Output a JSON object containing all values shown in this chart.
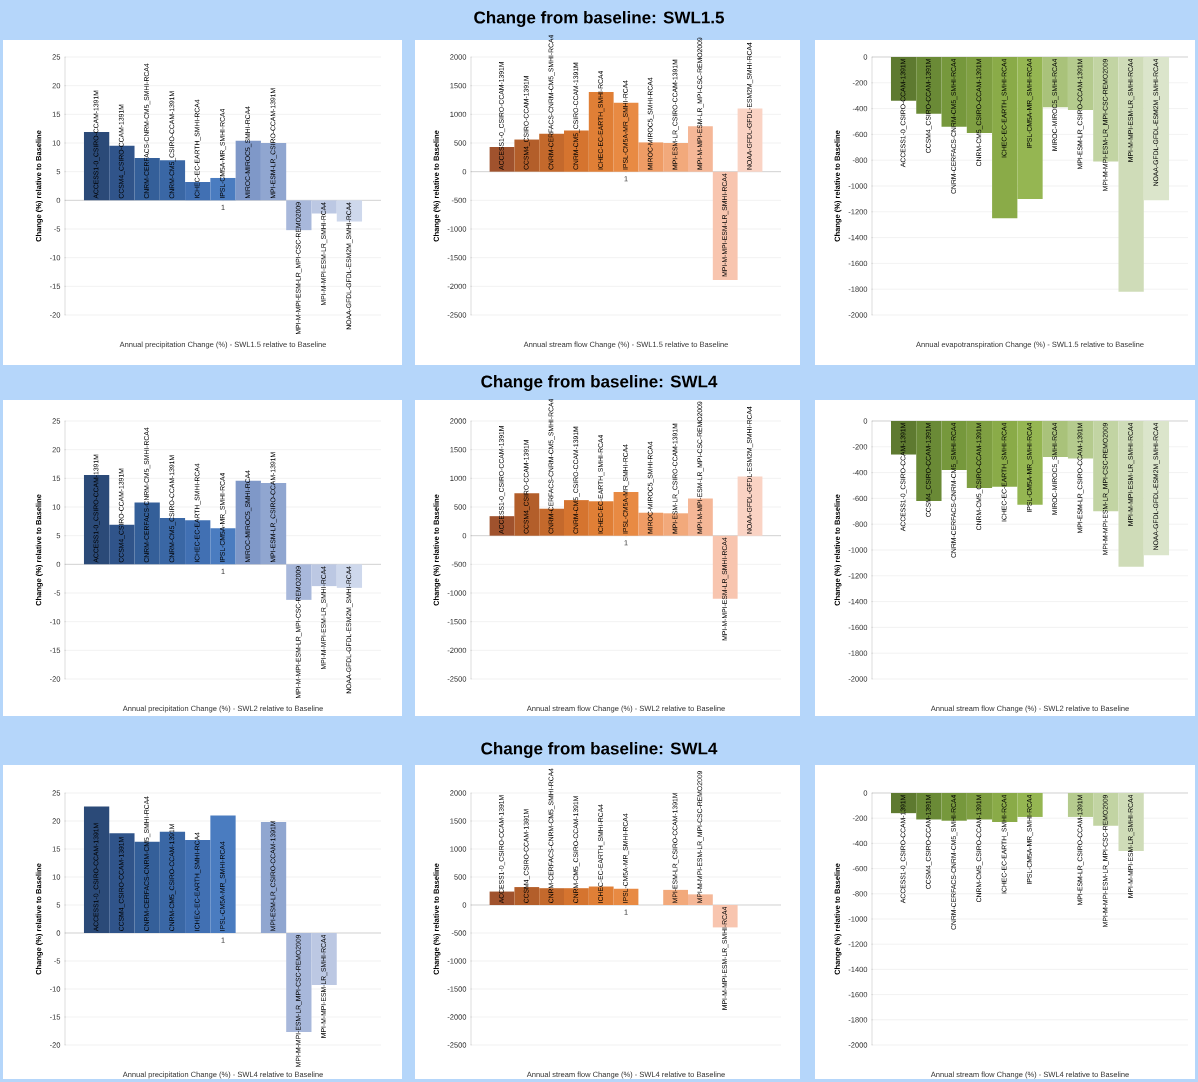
{
  "chart_data": [
    {
      "type": "bar",
      "xlabel": "Annual precipitation Change (%) - SWL1.5 relative to Baseline",
      "ylabel": "Change (%) relative to Baseline",
      "categories": [
        "1"
      ],
      "ylim": [
        -20,
        25
      ],
      "yticks": [
        -20,
        -15,
        -10,
        -5,
        0,
        5,
        10,
        15,
        20,
        25
      ],
      "grid": "y",
      "series": [
        {
          "name": "ACCESS1-0_CSIRO-CCAM-1391M",
          "color": "#2b4a78",
          "values": [
            11.9
          ]
        },
        {
          "name": "CCSM4_CSIRO-CCAM-1391M",
          "color": "#30548a",
          "values": [
            9.5
          ]
        },
        {
          "name": "CNRM-CERFACS-CNRM-CM5_SMHI-RCA4",
          "color": "#345f99",
          "values": [
            7.4
          ]
        },
        {
          "name": "CNRM-CM5_CSIRO-CCAM-1391M",
          "color": "#3a67a5",
          "values": [
            7.0
          ]
        },
        {
          "name": "ICHEC-EC-EARTH_SMHI-RCA4",
          "color": "#4170b3",
          "values": [
            3.2
          ]
        },
        {
          "name": "IPSL-CM5A-MR_SMHI-RCA4",
          "color": "#4a7cc0",
          "values": [
            3.9
          ]
        },
        {
          "name": "MIROC-MIROC5_SMHI-RCA4",
          "color": "#7f98c8",
          "values": [
            10.4
          ]
        },
        {
          "name": "MPI-ESM-LR_CSIRO-CCAM-1391M",
          "color": "#90a6d0",
          "values": [
            10.0
          ]
        },
        {
          "name": "MPI-M-MPI-ESM-LR_MPI-CSC-REMO2009",
          "color": "#a8b8db",
          "values": [
            -5.2
          ]
        },
        {
          "name": "MPI-M-MPI-ESM-LR_SMHI-RCA4",
          "color": "#bcc8e3",
          "values": [
            -2.3
          ]
        },
        {
          "name": "NOAA-GFDL-GFDL-ESM2M_SMHI-RCA4",
          "color": "#ced8ec",
          "values": [
            -3.7
          ]
        }
      ]
    },
    {
      "type": "bar",
      "title": "Change from baseline: SWL1.5",
      "xlabel": "Annual stream flow Change (%) - SWL1.5 relative to Baseline",
      "ylabel": "Change (%) relative to Baseline",
      "categories": [
        "1"
      ],
      "ylim": [
        -2500,
        2000
      ],
      "yticks": [
        -2500,
        -2000,
        -1500,
        -1000,
        -500,
        0,
        500,
        1000,
        1500,
        2000
      ],
      "grid": "y",
      "series": [
        {
          "name": "ACCESS1-0_CSIRO-CCAM-1391M",
          "color": "#a0522d",
          "values": [
            430
          ]
        },
        {
          "name": "CCSM4_CSIRO-CCAM-1391M",
          "color": "#b35e2a",
          "values": [
            560
          ]
        },
        {
          "name": "CNRM-CERFACS-CNRM-CM5_SMHI-RCA4",
          "color": "#c4692c",
          "values": [
            660
          ]
        },
        {
          "name": "CNRM-CM5_CSIRO-CCAM-1391M",
          "color": "#d5742f",
          "values": [
            720
          ]
        },
        {
          "name": "ICHEC-EC-EARTH_SMHI-RCA4",
          "color": "#e07f36",
          "values": [
            1390
          ]
        },
        {
          "name": "IPSL-CM5A-MR_SMHI-RCA4",
          "color": "#e88a43",
          "values": [
            1200
          ]
        },
        {
          "name": "MIROC-MIROC5_SMHI-RCA4",
          "color": "#ef9c65",
          "values": [
            510
          ]
        },
        {
          "name": "MPI-ESM-LR_CSIRO-CCAM-1391M",
          "color": "#f2a97b",
          "values": [
            500
          ]
        },
        {
          "name": "MPI-M-MPI-ESM-LR_MPI-CSC-REMO2009",
          "color": "#f5b797",
          "values": [
            790
          ]
        },
        {
          "name": "MPI-M-MPI-ESM-LR_SMHI-RCA4",
          "color": "#f8c5af",
          "values": [
            -1890
          ]
        },
        {
          "name": "NOAA-GFDL-GFDL-ESM2M_SMHI-RCA4",
          "color": "#fad3c4",
          "values": [
            1100
          ]
        }
      ]
    },
    {
      "type": "bar",
      "xlabel": "Annual evapotranspiration Change (%) - SWL1.5 relative to Baseline",
      "ylabel": "Change (%) relative to Baseline",
      "categories": [
        null
      ],
      "ylim": [
        -2000,
        0
      ],
      "yticks": [
        -2000,
        -1800,
        -1600,
        -1400,
        -1200,
        -1000,
        -800,
        -600,
        -400,
        -200,
        0
      ],
      "grid": "y",
      "series": [
        {
          "name": "ACCESS1-0_CSIRO-CCAM-1391M",
          "color": "#5e7a30",
          "values": [
            -340
          ]
        },
        {
          "name": "CCSM4_CSIRO-CCAM-1391M",
          "color": "#6a8a36",
          "values": [
            -440
          ]
        },
        {
          "name": "CNRM-CERFACS-CNRM-CM5_SMHI-RCA4",
          "color": "#76983c",
          "values": [
            -540
          ]
        },
        {
          "name": "CNRM-CM5_CSIRO-CCAM-1391M",
          "color": "#7f9f42",
          "values": [
            -590
          ]
        },
        {
          "name": "ICHEC-EC-EARTH_SMHI-RCA4",
          "color": "#8aab48",
          "values": [
            -1250
          ]
        },
        {
          "name": "IPSL-CM5A-MR_SMHI-RCA4",
          "color": "#95b652",
          "values": [
            -1100
          ]
        },
        {
          "name": "MIROC-MIROC5_SMHI-RCA4",
          "color": "#a9c27a",
          "values": [
            -390
          ]
        },
        {
          "name": "MPI-ESM-LR_CSIRO-CCAM-1391M",
          "color": "#b5cb8e",
          "values": [
            -410
          ]
        },
        {
          "name": "MPI-M-MPI-ESM-LR_MPI-CSC-REMO2009",
          "color": "#c2d4a3",
          "values": [
            -810
          ]
        },
        {
          "name": "MPI-M-MPI-ESM-LR_SMHI-RCA4",
          "color": "#cfdcb8",
          "values": [
            -1820
          ]
        },
        {
          "name": "NOAA-GFDL-GFDL-ESM2M_SMHI-RCA4",
          "color": "#dbe5cb",
          "values": [
            -1110
          ]
        }
      ]
    },
    {
      "type": "bar",
      "xlabel": "Annual precipitation Change (%) - SWL2 relative to Baseline",
      "ylabel": "Change (%) relative to Baseline",
      "categories": [
        "1"
      ],
      "ylim": [
        -20,
        25
      ],
      "yticks": [
        -20,
        -15,
        -10,
        -5,
        0,
        5,
        10,
        15,
        20,
        25
      ],
      "grid": "y",
      "series": [
        {
          "name": "ACCESS1-0_CSIRO-CCAM-1391M",
          "color": "#2b4a78",
          "values": [
            15.6
          ]
        },
        {
          "name": "CCSM4_CSIRO-CCAM-1391M",
          "color": "#30548a",
          "values": [
            6.9
          ]
        },
        {
          "name": "CNRM-CERFACS-CNRM-CM5_SMHI-RCA4",
          "color": "#345f99",
          "values": [
            10.8
          ]
        },
        {
          "name": "CNRM-CM5_CSIRO-CCAM-1391M",
          "color": "#3a67a5",
          "values": [
            8.1
          ]
        },
        {
          "name": "ICHEC-EC-EARTH_SMHI-RCA4",
          "color": "#4170b3",
          "values": [
            7.7
          ]
        },
        {
          "name": "IPSL-CM5A-MR_SMHI-RCA4",
          "color": "#4a7cc0",
          "values": [
            6.3
          ]
        },
        {
          "name": "MIROC-MIROC5_SMHI-RCA4",
          "color": "#7f98c8",
          "values": [
            14.6
          ]
        },
        {
          "name": "MPI-ESM-LR_CSIRO-CCAM-1391M",
          "color": "#90a6d0",
          "values": [
            14.2
          ]
        },
        {
          "name": "MPI-M-MPI-ESM-LR_MPI-CSC-REMO2009",
          "color": "#a8b8db",
          "values": [
            -6.2
          ]
        },
        {
          "name": "MPI-M-MPI-ESM-LR_SMHI-RCA4",
          "color": "#bcc8e3",
          "values": [
            -3.8
          ]
        },
        {
          "name": "NOAA-GFDL-GFDL-ESM2M_SMHI-RCA4",
          "color": "#ced8ec",
          "values": [
            -4.1
          ]
        }
      ]
    },
    {
      "type": "bar",
      "title": "Change from baseline: SWL4",
      "xlabel": "Annual stream flow Change (%) - SWL2 relative to Baseline",
      "ylabel": "Change (%) relative to Baseline",
      "categories": [
        "1"
      ],
      "ylim": [
        -2500,
        2000
      ],
      "yticks": [
        -2500,
        -2000,
        -1500,
        -1000,
        -500,
        0,
        500,
        1000,
        1500,
        2000
      ],
      "grid": "y",
      "series": [
        {
          "name": "ACCESS1-0_CSIRO-CCAM-1391M",
          "color": "#a0522d",
          "values": [
            340
          ]
        },
        {
          "name": "CCSM4_CSIRO-CCAM-1391M",
          "color": "#b35e2a",
          "values": [
            740
          ]
        },
        {
          "name": "CNRM-CERFACS-CNRM-CM5_SMHI-RCA4",
          "color": "#c4692c",
          "values": [
            470
          ]
        },
        {
          "name": "CNRM-CM5_CSIRO-CCAM-1391M",
          "color": "#d5742f",
          "values": [
            620
          ]
        },
        {
          "name": "ICHEC-EC-EARTH_SMHI-RCA4",
          "color": "#e07f36",
          "values": [
            600
          ]
        },
        {
          "name": "IPSL-CM5A-MR_SMHI-RCA4",
          "color": "#e88a43",
          "values": [
            760
          ]
        },
        {
          "name": "MIROC-MIROC5_SMHI-RCA4",
          "color": "#ef9c65",
          "values": [
            400
          ]
        },
        {
          "name": "MPI-ESM-LR_CSIRO-CCAM-1391M",
          "color": "#f2a97b",
          "values": [
            390
          ]
        },
        {
          "name": "MPI-M-MPI-ESM-LR_MPI-CSC-REMO2009",
          "color": "#f5b797",
          "values": [
            650
          ]
        },
        {
          "name": "MPI-M-MPI-ESM-LR_SMHI-RCA4",
          "color": "#f8c5af",
          "values": [
            -1100
          ]
        },
        {
          "name": "NOAA-GFDL-GFDL-ESM2M_SMHI-RCA4",
          "color": "#fad3c4",
          "values": [
            1030
          ]
        }
      ]
    },
    {
      "type": "bar",
      "xlabel": "Annual stream flow Change (%) - SWL2 relative to Baseline",
      "ylabel": "Change (%) relative to Baseline",
      "categories": [
        null
      ],
      "ylim": [
        -2000,
        0
      ],
      "yticks": [
        -2000,
        -1800,
        -1600,
        -1400,
        -1200,
        -1000,
        -800,
        -600,
        -400,
        -200,
        0
      ],
      "grid": "y",
      "series": [
        {
          "name": "ACCESS1-0_CSIRO-CCAM-1391M",
          "color": "#5e7a30",
          "values": [
            -260
          ]
        },
        {
          "name": "CCSM4_CSIRO-CCAM-1391M",
          "color": "#6a8a36",
          "values": [
            -620
          ]
        },
        {
          "name": "CNRM-CERFACS-CNRM-CM5_SMHI-RCA4",
          "color": "#76983c",
          "values": [
            -380
          ]
        },
        {
          "name": "CNRM-CM5_CSIRO-CCAM-1391M",
          "color": "#7f9f42",
          "values": [
            -520
          ]
        },
        {
          "name": "ICHEC-EC-EARTH_SMHI-RCA4",
          "color": "#8aab48",
          "values": [
            -510
          ]
        },
        {
          "name": "IPSL-CM5A-MR_SMHI-RCA4",
          "color": "#95b652",
          "values": [
            -650
          ]
        },
        {
          "name": "MIROC-MIROC5_SMHI-RCA4",
          "color": "#a9c27a",
          "values": [
            -280
          ]
        },
        {
          "name": "MPI-ESM-LR_CSIRO-CCAM-1391M",
          "color": "#b5cb8e",
          "values": [
            -290
          ]
        },
        {
          "name": "MPI-M-MPI-ESM-LR_MPI-CSC-REMO2009",
          "color": "#c2d4a3",
          "values": [
            -700
          ]
        },
        {
          "name": "MPI-M-MPI-ESM-LR_SMHI-RCA4",
          "color": "#cfdcb8",
          "values": [
            -1130
          ]
        },
        {
          "name": "NOAA-GFDL-GFDL-ESM2M_SMHI-RCA4",
          "color": "#dbe5cb",
          "values": [
            -1040
          ]
        }
      ]
    },
    {
      "type": "bar",
      "xlabel": "Annual precipitation Change (%) - SWL4 relative to Baseline",
      "ylabel": "Change (%) relative to Baseline",
      "categories": [
        "1"
      ],
      "ylim": [
        -20,
        25
      ],
      "yticks": [
        -20,
        -15,
        -10,
        -5,
        0,
        5,
        10,
        15,
        20,
        25
      ],
      "grid": "y",
      "series": [
        {
          "name": "ACCESS1-0_CSIRO-CCAM-1391M",
          "color": "#2b4a78",
          "values": [
            22.6
          ]
        },
        {
          "name": "CCSM4_CSIRO-CCAM-1391M",
          "color": "#30548a",
          "values": [
            17.8
          ]
        },
        {
          "name": "CNRM-CERFACS-CNRM-CM5_SMHI-RCA4",
          "color": "#345f99",
          "values": [
            16.3
          ]
        },
        {
          "name": "CNRM-CM5_CSIRO-CCAM-1391M",
          "color": "#3a67a5",
          "values": [
            18.1
          ]
        },
        {
          "name": "ICHEC-EC-EARTH_SMHI-RCA4",
          "color": "#4170b3",
          "values": [
            16.6
          ]
        },
        {
          "name": "IPSL-CM5A-MR_SMHI-RCA4",
          "color": "#4a7cc0",
          "values": [
            21.0
          ]
        },
        {
          "values": [
            null
          ]
        },
        {
          "name": "MPI-ESM-LR_CSIRO-CCAM-1391M",
          "color": "#90a6d0",
          "values": [
            19.8
          ]
        },
        {
          "name": "MPI-M-MPI-ESM-LR_MPI-CSC-REMO2009",
          "color": "#a8b8db",
          "values": [
            -17.7
          ]
        },
        {
          "name": "MPI-M-MPI-ESM-LR_SMHI-RCA4",
          "color": "#bcc8e3",
          "values": [
            -9.3
          ]
        },
        {
          "values": [
            null
          ]
        }
      ]
    },
    {
      "type": "bar",
      "title": "Change from baseline: SWL4",
      "xlabel": "Annual stream flow Change (%) - SWL4 relative to Baseline",
      "ylabel": "Change (%) relative to Baseline",
      "categories": [
        "1"
      ],
      "ylim": [
        -2500,
        2000
      ],
      "yticks": [
        -2500,
        -2000,
        -1500,
        -1000,
        -500,
        0,
        500,
        1000,
        1500,
        2000
      ],
      "grid": "y",
      "series": [
        {
          "name": "ACCESS1-0_CSIRO-CCAM-1391M",
          "color": "#a0522d",
          "values": [
            240
          ]
        },
        {
          "name": "CCSM4_CSIRO-CCAM-1391M",
          "color": "#b35e2a",
          "values": [
            320
          ]
        },
        {
          "name": "CNRM-CERFACS-CNRM-CM5_SMHI-RCA4",
          "color": "#c4692c",
          "values": [
            300
          ]
        },
        {
          "name": "CNRM-CM5_CSIRO-CCAM-1391M",
          "color": "#d5742f",
          "values": [
            300
          ]
        },
        {
          "name": "ICHEC-EC-EARTH_SMHI-RCA4",
          "color": "#e07f36",
          "values": [
            330
          ]
        },
        {
          "name": "IPSL-CM5A-MR_SMHI-RCA4",
          "color": "#e88a43",
          "values": [
            290
          ]
        },
        {
          "values": [
            null
          ]
        },
        {
          "name": "MPI-ESM-LR_CSIRO-CCAM-1391M",
          "color": "#f2a97b",
          "values": [
            270
          ]
        },
        {
          "name": "MPI-M-MPI-ESM-LR_MPI-CSC-REMO2009",
          "color": "#f5b797",
          "values": [
            190
          ]
        },
        {
          "name": "MPI-M-MPI-ESM-LR_SMHI-RCA4",
          "color": "#f8c5af",
          "values": [
            -400
          ]
        },
        {
          "values": [
            null
          ]
        }
      ]
    },
    {
      "type": "bar",
      "xlabel": "Annual stream flow Change (%) - SWL4 relative to Baseline",
      "ylabel": "Change (%) relative to Baseline",
      "categories": [
        null
      ],
      "ylim": [
        -2000,
        0
      ],
      "yticks": [
        -2000,
        -1800,
        -1600,
        -1400,
        -1200,
        -1000,
        -800,
        -600,
        -400,
        -200,
        0
      ],
      "grid": "y",
      "series": [
        {
          "name": "ACCESS1-0_CSIRO-CCAM-1391M",
          "color": "#5e7a30",
          "values": [
            -160
          ]
        },
        {
          "name": "CCSM4_CSIRO-CCAM-1391M",
          "color": "#6a8a36",
          "values": [
            -210
          ]
        },
        {
          "name": "CNRM-CERFACS-CNRM-CM5_SMHI-RCA4",
          "color": "#76983c",
          "values": [
            -220
          ]
        },
        {
          "name": "CNRM-CM5_CSIRO-CCAM-1391M",
          "color": "#7f9f42",
          "values": [
            -210
          ]
        },
        {
          "name": "ICHEC-EC-EARTH_SMHI-RCA4",
          "color": "#8aab48",
          "values": [
            -230
          ]
        },
        {
          "name": "IPSL-CM5A-MR_SMHI-RCA4",
          "color": "#95b652",
          "values": [
            -190
          ]
        },
        {
          "values": [
            null
          ]
        },
        {
          "name": "MPI-ESM-LR_CSIRO-CCAM-1391M",
          "color": "#b5cb8e",
          "values": [
            -190
          ]
        },
        {
          "name": "MPI-M-MPI-ESM-LR_MPI-CSC-REMO2009",
          "color": "#c2d4a3",
          "values": [
            -260
          ]
        },
        {
          "name": "MPI-M-MPI-ESM-LR_SMHI-RCA4",
          "color": "#cfdcb8",
          "values": [
            -460
          ]
        },
        {
          "values": [
            null
          ]
        }
      ]
    }
  ]
}
